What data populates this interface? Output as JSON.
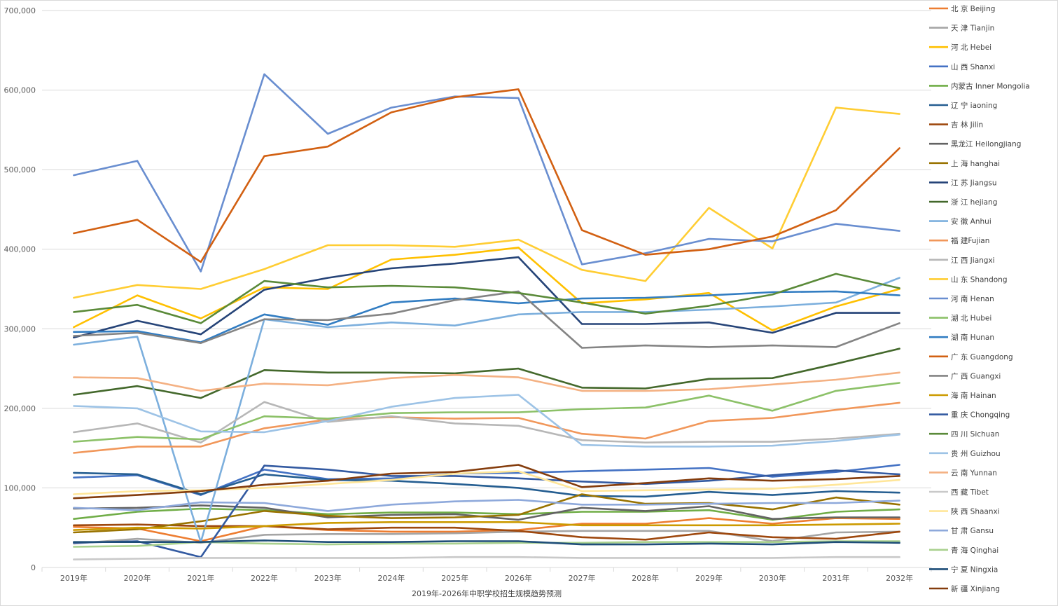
{
  "chart_data": {
    "type": "line",
    "title": "",
    "xlabel": "2019年-2026年中职学校招生规模趋势预测",
    "ylabel": "",
    "ylim": [
      0,
      700000
    ],
    "yticks": [
      0,
      100000,
      200000,
      300000,
      400000,
      500000,
      600000,
      700000
    ],
    "ytick_labels": [
      "0",
      "100,000",
      "200,000",
      "300,000",
      "400,000",
      "500,000",
      "600,000",
      "700,000"
    ],
    "grid": "horizontal",
    "legend_position": "right",
    "categories": [
      "2019年",
      "2020年",
      "2021年",
      "2022年",
      "2023年",
      "2024年",
      "2025年",
      "2026年",
      "2027年",
      "2028年",
      "2029年",
      "2030年",
      "2031年",
      "2032年"
    ],
    "series": [
      {
        "name": "北 京 Beijing",
        "color": "#ED7D31",
        "values": [
          51000,
          49000,
          33000,
          52000,
          47000,
          45000,
          45000,
          47000,
          55000,
          55000,
          62000,
          55000,
          62000,
          61000
        ]
      },
      {
        "name": "天 津 Tianjin",
        "color": "#A5A5A5",
        "values": [
          30000,
          36000,
          31000,
          41000,
          42000,
          42000,
          43000,
          45000,
          46000,
          46000,
          46000,
          33000,
          44000,
          45000
        ]
      },
      {
        "name": "河 北 Hebei",
        "color": "#FFC000",
        "values": [
          302000,
          342000,
          313000,
          352000,
          350000,
          387000,
          393000,
          402000,
          332000,
          337000,
          345000,
          298000,
          328000,
          350000
        ]
      },
      {
        "name": "山 西 Shanxi",
        "color": "#4472C4",
        "values": [
          113000,
          116000,
          91000,
          123000,
          111000,
          112000,
          118000,
          119000,
          121000,
          123000,
          125000,
          114000,
          120000,
          129000
        ]
      },
      {
        "name": "内蒙古 Inner Mongolia",
        "color": "#70AD47",
        "values": [
          61000,
          70000,
          74000,
          72000,
          67000,
          69000,
          69000,
          67000,
          70000,
          70000,
          72000,
          60000,
          70000,
          73000
        ]
      },
      {
        "name": "辽 宁 iaoning",
        "color": "#255E91",
        "values": [
          119000,
          117000,
          92000,
          117000,
          110000,
          109000,
          105000,
          100000,
          90000,
          89000,
          95000,
          91000,
          96000,
          94000
        ]
      },
      {
        "name": "吉 林 Jilin",
        "color": "#9E480E",
        "values": [
          53000,
          54000,
          52000,
          52000,
          48000,
          50000,
          50000,
          46000,
          38000,
          35000,
          44000,
          38000,
          36000,
          45000
        ]
      },
      {
        "name": "黑龙江 Heilongjiang",
        "color": "#636363",
        "values": [
          74000,
          75000,
          78000,
          75000,
          63000,
          66000,
          67000,
          60000,
          75000,
          71000,
          77000,
          61000,
          63000,
          63000
        ]
      },
      {
        "name": "上 海 hanghai",
        "color": "#997300",
        "values": [
          44000,
          48000,
          58000,
          71000,
          65000,
          62000,
          63000,
          66000,
          92000,
          80000,
          81000,
          73000,
          88000,
          79000
        ]
      },
      {
        "name": "江 苏 Jiangsu",
        "color": "#264478",
        "values": [
          289000,
          310000,
          293000,
          349000,
          364000,
          376000,
          382000,
          390000,
          306000,
          306000,
          308000,
          295000,
          320000,
          320000
        ]
      },
      {
        "name": "浙 江 hejiang",
        "color": "#43682B",
        "values": [
          217000,
          228000,
          213000,
          248000,
          245000,
          245000,
          244000,
          250000,
          226000,
          225000,
          237000,
          238000,
          256000,
          275000
        ]
      },
      {
        "name": "安 徽 Anhui",
        "color": "#7CAFDD",
        "values": [
          280000,
          290000,
          32000,
          312000,
          302000,
          308000,
          304000,
          318000,
          321000,
          321000,
          324000,
          328000,
          333000,
          364000
        ]
      },
      {
        "name": "福 建Fujian",
        "color": "#F1975A",
        "values": [
          144000,
          152000,
          152000,
          175000,
          186000,
          189000,
          187000,
          188000,
          168000,
          162000,
          184000,
          188000,
          198000,
          207000
        ]
      },
      {
        "name": "江 西 Jiangxi",
        "color": "#B7B7B7",
        "values": [
          170000,
          181000,
          157000,
          208000,
          183000,
          190000,
          181000,
          178000,
          160000,
          157000,
          158000,
          158000,
          162000,
          168000
        ]
      },
      {
        "name": "山 东 Shandong",
        "color": "#FFCD33",
        "values": [
          339000,
          355000,
          350000,
          375000,
          405000,
          405000,
          403000,
          412000,
          374000,
          360000,
          452000,
          401000,
          578000,
          570000
        ]
      },
      {
        "name": "河 南 Henan",
        "color": "#698ED0",
        "values": [
          493000,
          511000,
          372000,
          620000,
          545000,
          578000,
          592000,
          590000,
          381000,
          395000,
          413000,
          410000,
          432000,
          423000
        ]
      },
      {
        "name": "湖 北 Hubei",
        "color": "#8CC168",
        "values": [
          158000,
          164000,
          161000,
          190000,
          187000,
          194000,
          195000,
          195000,
          199000,
          201000,
          216000,
          197000,
          222000,
          232000
        ]
      },
      {
        "name": "湖 南 Hunan",
        "color": "#327DC2",
        "values": [
          296000,
          297000,
          283000,
          318000,
          305000,
          333000,
          338000,
          332000,
          338000,
          339000,
          342000,
          346000,
          347000,
          342000
        ]
      },
      {
        "name": "广 东 Guangdong",
        "color": "#D26012",
        "values": [
          420000,
          437000,
          384000,
          517000,
          529000,
          572000,
          591000,
          601000,
          424000,
          393000,
          400000,
          416000,
          449000,
          527000
        ]
      },
      {
        "name": "广 西 Guangxi",
        "color": "#848484",
        "values": [
          291000,
          295000,
          282000,
          312000,
          311000,
          319000,
          336000,
          347000,
          276000,
          279000,
          277000,
          279000,
          277000,
          307000
        ]
      },
      {
        "name": "海 南 Hainan",
        "color": "#CC9A00",
        "values": [
          47000,
          50000,
          49000,
          52000,
          56000,
          57000,
          57000,
          57000,
          53000,
          53000,
          53000,
          53000,
          54000,
          55000
        ]
      },
      {
        "name": "重 庆 Chongqing",
        "color": "#335AA1",
        "values": [
          31000,
          33000,
          13000,
          128000,
          123000,
          115000,
          115000,
          112000,
          108000,
          105000,
          109000,
          116000,
          122000,
          117000
        ]
      },
      {
        "name": "四 川 Sichuan",
        "color": "#5A8A39",
        "values": [
          321000,
          330000,
          307000,
          360000,
          352000,
          354000,
          352000,
          345000,
          333000,
          319000,
          329000,
          343000,
          369000,
          351000
        ]
      },
      {
        "name": "贵 州 Guizhou",
        "color": "#9DC3E6",
        "values": [
          203000,
          200000,
          171000,
          170000,
          184000,
          202000,
          213000,
          217000,
          154000,
          152000,
          152000,
          153000,
          159000,
          167000
        ]
      },
      {
        "name": "云 南 Yunnan",
        "color": "#F4B183",
        "values": [
          239000,
          238000,
          222000,
          231000,
          229000,
          238000,
          242000,
          239000,
          222000,
          222000,
          224000,
          230000,
          236000,
          245000
        ]
      },
      {
        "name": "西 藏 Tibet",
        "color": "#C9C9C9",
        "values": [
          10000,
          11000,
          12000,
          12000,
          12000,
          12000,
          13000,
          13000,
          12000,
          12000,
          12000,
          12000,
          13000,
          13000
        ]
      },
      {
        "name": "陕 西 Shaanxi",
        "color": "#FFE699",
        "values": [
          92000,
          96000,
          97000,
          100000,
          105000,
          110000,
          118000,
          121000,
          96000,
          97000,
          98000,
          99000,
          104000,
          110000
        ]
      },
      {
        "name": "甘 肃 Gansu",
        "color": "#8EA9DB",
        "values": [
          75000,
          72000,
          82000,
          81000,
          71000,
          79000,
          83000,
          85000,
          79000,
          79000,
          80000,
          81000,
          81000,
          84000
        ]
      },
      {
        "name": "青 海 Qinghai",
        "color": "#A9D18E",
        "values": [
          26000,
          27000,
          32000,
          30000,
          29000,
          30000,
          30000,
          31000,
          31000,
          32000,
          32000,
          32000,
          33000,
          33000
        ]
      },
      {
        "name": "宁 夏 Ningxia",
        "color": "#1F4E79",
        "values": [
          32000,
          32000,
          32000,
          34000,
          32000,
          32000,
          33000,
          33000,
          29000,
          29000,
          30000,
          29000,
          32000,
          31000
        ]
      },
      {
        "name": "新 疆 Xinjiang",
        "color": "#843C0C",
        "values": [
          87000,
          91000,
          96000,
          104000,
          109000,
          118000,
          120000,
          129000,
          101000,
          106000,
          112000,
          109000,
          111000,
          115000
        ]
      }
    ]
  }
}
